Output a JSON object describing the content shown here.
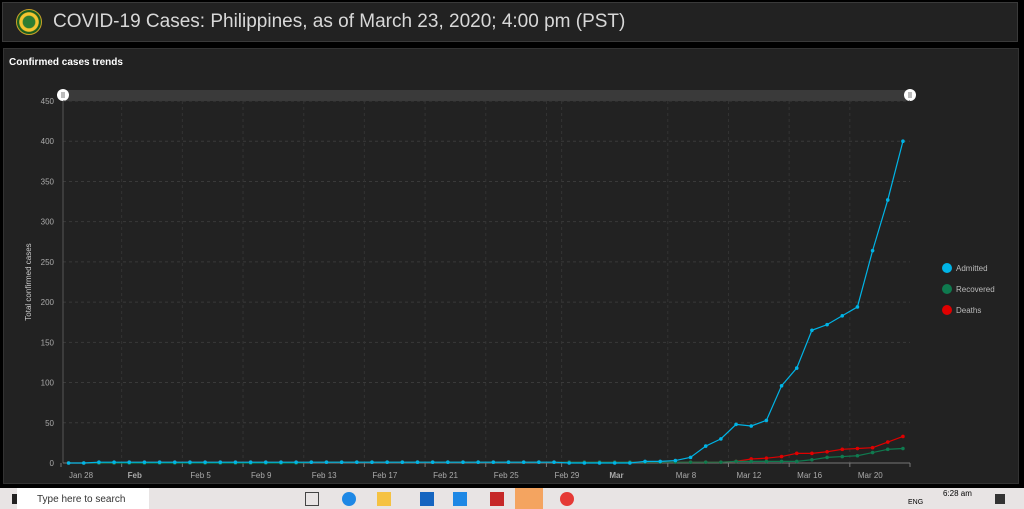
{
  "header": {
    "title": "COVID-19 Cases: Philippines, as of March 23, 2020; 4:00 pm (PST)"
  },
  "panel": {
    "title": "Confirmed cases trends"
  },
  "chart_data": {
    "type": "line",
    "ylabel": "Total confirmed cases",
    "ylim": [
      0,
      450
    ],
    "yticks": [
      0,
      50,
      100,
      150,
      200,
      250,
      300,
      350,
      400,
      450
    ],
    "xticks": [
      {
        "label": "Jan 28",
        "day": 0,
        "bold": false
      },
      {
        "label": "Feb",
        "day": 4,
        "bold": true
      },
      {
        "label": "Feb 5",
        "day": 8,
        "bold": false
      },
      {
        "label": "Feb 9",
        "day": 12,
        "bold": false
      },
      {
        "label": "Feb 13",
        "day": 16,
        "bold": false
      },
      {
        "label": "Feb 17",
        "day": 20,
        "bold": false
      },
      {
        "label": "Feb 21",
        "day": 24,
        "bold": false
      },
      {
        "label": "Feb 25",
        "day": 28,
        "bold": false
      },
      {
        "label": "Feb 29",
        "day": 32,
        "bold": false
      },
      {
        "label": "Mar",
        "day": 33,
        "bold": true
      },
      {
        "label": "Mar 8",
        "day": 40,
        "bold": false
      },
      {
        "label": "Mar 12",
        "day": 44,
        "bold": false
      },
      {
        "label": "Mar 16",
        "day": 48,
        "bold": false
      },
      {
        "label": "Mar 20",
        "day": 52,
        "bold": false
      }
    ],
    "x_start": "Jan 28",
    "x_end": "Mar 23",
    "grid": true,
    "legend_position": "right",
    "series": [
      {
        "name": "Admitted",
        "color": "#00b4e6",
        "values": [
          0,
          0,
          1,
          1,
          1,
          1,
          1,
          1,
          1,
          1,
          1,
          1,
          1,
          1,
          1,
          1,
          1,
          1,
          1,
          1,
          1,
          1,
          1,
          1,
          1,
          1,
          1,
          1,
          1,
          1,
          1,
          1,
          1,
          0,
          0,
          0,
          0,
          0,
          2,
          2,
          3,
          7,
          21,
          30,
          48,
          46,
          53,
          96,
          118,
          165,
          172,
          183,
          194,
          264,
          327,
          400
        ]
      },
      {
        "name": "Recovered",
        "color": "#0f7a4f",
        "values": [
          0,
          0,
          0,
          0,
          0,
          0,
          0,
          0,
          0,
          0,
          0,
          0,
          0,
          0,
          0,
          0,
          1,
          1,
          1,
          1,
          1,
          1,
          1,
          1,
          1,
          1,
          1,
          1,
          1,
          1,
          1,
          1,
          1,
          1,
          1,
          1,
          1,
          1,
          1,
          1,
          1,
          1,
          1,
          1,
          2,
          2,
          2,
          2,
          2,
          4,
          7,
          8,
          9,
          13,
          17,
          18
        ]
      },
      {
        "name": "Deaths",
        "color": "#e00000",
        "values": [
          0,
          0,
          0,
          0,
          1,
          1,
          1,
          1,
          1,
          1,
          1,
          1,
          1,
          1,
          1,
          1,
          1,
          1,
          1,
          1,
          1,
          1,
          1,
          1,
          1,
          1,
          1,
          1,
          1,
          1,
          1,
          1,
          1,
          1,
          1,
          1,
          1,
          1,
          1,
          1,
          1,
          1,
          1,
          1,
          2,
          5,
          6,
          8,
          12,
          12,
          14,
          17,
          18,
          19,
          26,
          33
        ]
      }
    ]
  },
  "taskbar": {
    "search_placeholder": "Type here to search",
    "language": "ENG",
    "time": "6:28 am"
  }
}
